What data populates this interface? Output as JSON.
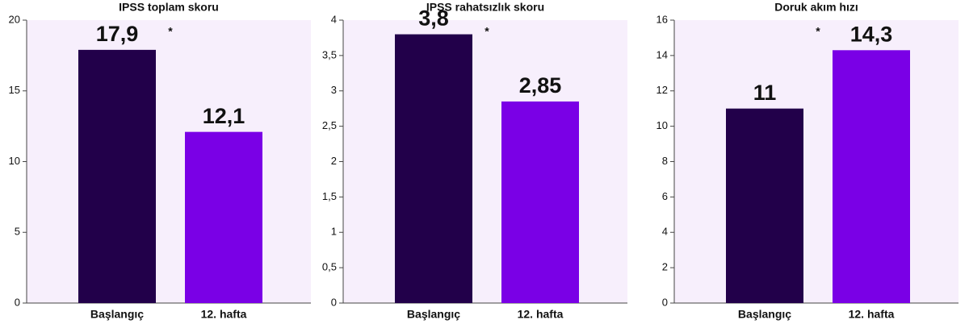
{
  "chart_data": [
    {
      "type": "bar",
      "title": "IPSS toplam skoru",
      "categories": [
        "Başlangıç",
        "12. hafta"
      ],
      "values": [
        17.9,
        12.1
      ],
      "value_labels": [
        "17,9",
        "12,1"
      ],
      "colors": [
        "#22004a",
        "#7a00e6"
      ],
      "annotation": "*",
      "ylim": [
        0,
        20
      ],
      "yticks": [
        0,
        5,
        10,
        15,
        20
      ]
    },
    {
      "type": "bar",
      "title": "IPSS rahatsızlık skoru",
      "categories": [
        "Başlangıç",
        "12. hafta"
      ],
      "values": [
        3.8,
        2.85
      ],
      "value_labels": [
        "3,8",
        "2,85"
      ],
      "colors": [
        "#22004a",
        "#7a00e6"
      ],
      "annotation": "*",
      "ylim": [
        0,
        4
      ],
      "yticks": [
        0,
        {
          "value": 0.5,
          "label": "0,5"
        },
        1,
        {
          "value": 1.5,
          "label": "1,5"
        },
        2,
        {
          "value": 2.5,
          "label": "2,5"
        },
        3,
        {
          "value": 3.5,
          "label": "3,5"
        },
        4
      ]
    },
    {
      "type": "bar",
      "title": "Doruk akım hızı",
      "categories": [
        "Başlangıç",
        "12. hafta"
      ],
      "values": [
        11,
        14.3
      ],
      "value_labels": [
        "11",
        "14,3"
      ],
      "colors": [
        "#22004a",
        "#7a00e6"
      ],
      "annotation": "*",
      "ylim": [
        0,
        16
      ],
      "yticks": [
        0,
        2,
        4,
        6,
        8,
        10,
        12,
        14,
        16
      ]
    }
  ]
}
